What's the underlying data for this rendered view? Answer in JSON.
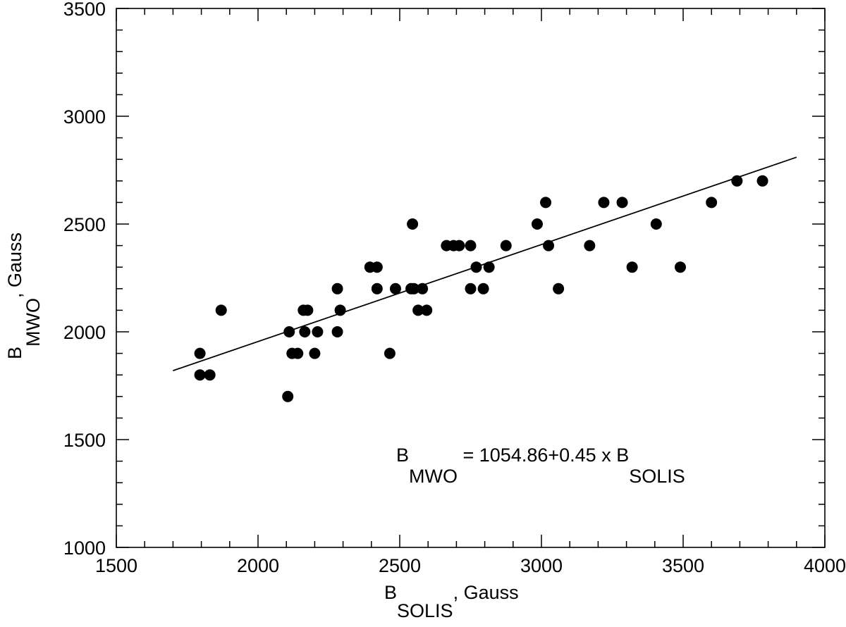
{
  "chart_data": {
    "type": "scatter",
    "title": "",
    "xlabel": {
      "main": "B",
      "sub": "SOLIS",
      "suffix": ", Gauss"
    },
    "ylabel": {
      "main": "B",
      "sub": "MWO",
      "suffix": ", Gauss"
    },
    "xlim": [
      1500,
      4000
    ],
    "ylim": [
      1000,
      3500
    ],
    "xticks": [
      1500,
      2000,
      2500,
      3000,
      3500,
      4000
    ],
    "yticks": [
      1000,
      1500,
      2000,
      2500,
      3000,
      3500
    ],
    "x_minor_step": 100,
    "y_minor_step": 100,
    "grid": false,
    "points": [
      {
        "x": 1795,
        "y": 1900
      },
      {
        "x": 1795,
        "y": 1800
      },
      {
        "x": 1830,
        "y": 1800
      },
      {
        "x": 1870,
        "y": 2100
      },
      {
        "x": 2105,
        "y": 1700
      },
      {
        "x": 2110,
        "y": 2000
      },
      {
        "x": 2120,
        "y": 1900
      },
      {
        "x": 2140,
        "y": 1900
      },
      {
        "x": 2160,
        "y": 2100
      },
      {
        "x": 2175,
        "y": 2100
      },
      {
        "x": 2165,
        "y": 2000
      },
      {
        "x": 2200,
        "y": 1900
      },
      {
        "x": 2210,
        "y": 2000
      },
      {
        "x": 2280,
        "y": 2200
      },
      {
        "x": 2280,
        "y": 2000
      },
      {
        "x": 2290,
        "y": 2100
      },
      {
        "x": 2395,
        "y": 2300
      },
      {
        "x": 2420,
        "y": 2300
      },
      {
        "x": 2420,
        "y": 2200
      },
      {
        "x": 2465,
        "y": 1900
      },
      {
        "x": 2485,
        "y": 2200
      },
      {
        "x": 2540,
        "y": 2200
      },
      {
        "x": 2545,
        "y": 2500
      },
      {
        "x": 2550,
        "y": 2200
      },
      {
        "x": 2565,
        "y": 2100
      },
      {
        "x": 2580,
        "y": 2200
      },
      {
        "x": 2595,
        "y": 2100
      },
      {
        "x": 2665,
        "y": 2400
      },
      {
        "x": 2690,
        "y": 2400
      },
      {
        "x": 2710,
        "y": 2400
      },
      {
        "x": 2750,
        "y": 2400
      },
      {
        "x": 2750,
        "y": 2200
      },
      {
        "x": 2770,
        "y": 2300
      },
      {
        "x": 2795,
        "y": 2200
      },
      {
        "x": 2815,
        "y": 2300
      },
      {
        "x": 2875,
        "y": 2400
      },
      {
        "x": 2985,
        "y": 2500
      },
      {
        "x": 3015,
        "y": 2600
      },
      {
        "x": 3025,
        "y": 2400
      },
      {
        "x": 3060,
        "y": 2200
      },
      {
        "x": 3170,
        "y": 2400
      },
      {
        "x": 3220,
        "y": 2600
      },
      {
        "x": 3285,
        "y": 2600
      },
      {
        "x": 3320,
        "y": 2300
      },
      {
        "x": 3405,
        "y": 2500
      },
      {
        "x": 3490,
        "y": 2300
      },
      {
        "x": 3600,
        "y": 2600
      },
      {
        "x": 3690,
        "y": 2700
      },
      {
        "x": 3780,
        "y": 2700
      }
    ],
    "fit_line": {
      "intercept": 1054.86,
      "slope": 0.45,
      "x_range": [
        1700,
        3900
      ]
    },
    "annotation": {
      "lhs_main": "B",
      "lhs_sub": "MWO",
      "rhs": " = 1054.86+0.45 x B",
      "rhs_sub": "SOLIS"
    }
  }
}
